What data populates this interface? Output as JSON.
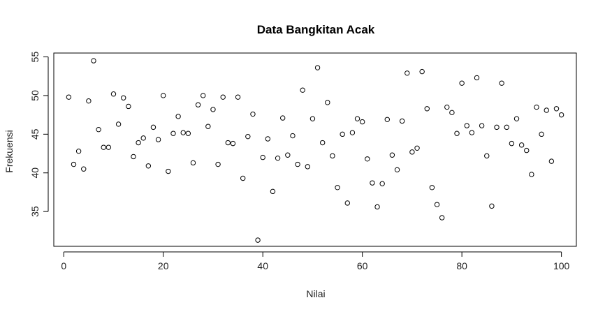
{
  "chart_data": {
    "type": "scatter",
    "title": "Data Bangkitan Acak",
    "xlabel": "Nilai",
    "ylabel": "Frekuensi",
    "xlim": [
      -2,
      103
    ],
    "ylim": [
      30.5,
      55.5
    ],
    "xticks": [
      0,
      20,
      40,
      60,
      80,
      100
    ],
    "yticks": [
      35,
      40,
      45,
      50,
      55
    ],
    "grid": false,
    "marker": "open-circle",
    "point_color": "#000000",
    "x": [
      1,
      2,
      3,
      4,
      5,
      6,
      7,
      8,
      9,
      10,
      11,
      12,
      13,
      14,
      15,
      16,
      17,
      18,
      19,
      20,
      21,
      22,
      23,
      24,
      25,
      26,
      27,
      28,
      29,
      30,
      31,
      32,
      33,
      34,
      35,
      36,
      37,
      38,
      39,
      40,
      41,
      42,
      43,
      44,
      45,
      46,
      47,
      48,
      49,
      50,
      51,
      52,
      53,
      54,
      55,
      56,
      57,
      58,
      59,
      60,
      61,
      62,
      63,
      64,
      65,
      66,
      67,
      68,
      69,
      70,
      71,
      72,
      73,
      74,
      75,
      76,
      77,
      78,
      79,
      80,
      81,
      82,
      83,
      84,
      85,
      86,
      87,
      88,
      89,
      90,
      91,
      92,
      93,
      94,
      95,
      96,
      97,
      98,
      99,
      100
    ],
    "y": [
      49.8,
      41.1,
      42.8,
      40.5,
      49.3,
      54.5,
      45.6,
      43.3,
      43.3,
      50.2,
      46.3,
      49.7,
      48.6,
      42.1,
      43.9,
      44.5,
      40.9,
      45.9,
      44.3,
      50.0,
      40.2,
      45.1,
      47.3,
      45.2,
      45.1,
      41.3,
      48.8,
      50.0,
      46.0,
      48.2,
      41.1,
      49.8,
      43.9,
      43.8,
      49.8,
      39.3,
      44.7,
      47.6,
      31.3,
      42.0,
      44.4,
      37.6,
      41.9,
      47.1,
      42.3,
      44.8,
      41.1,
      50.7,
      40.8,
      47.0,
      53.6,
      43.9,
      49.1,
      42.2,
      38.1,
      45.0,
      36.1,
      45.2,
      47.0,
      46.6,
      41.8,
      38.7,
      35.6,
      38.6,
      46.9,
      42.3,
      40.4,
      46.7,
      52.9,
      42.7,
      43.2,
      53.1,
      48.3,
      38.1,
      35.9,
      34.2,
      48.5,
      47.8,
      45.1,
      51.6,
      46.1,
      45.2,
      52.3,
      46.1,
      42.2,
      35.7,
      45.9,
      51.6,
      45.9,
      43.8,
      47.0,
      43.6,
      42.9,
      39.8,
      48.5,
      45.0,
      48.1,
      41.5,
      48.3,
      47.5
    ]
  }
}
